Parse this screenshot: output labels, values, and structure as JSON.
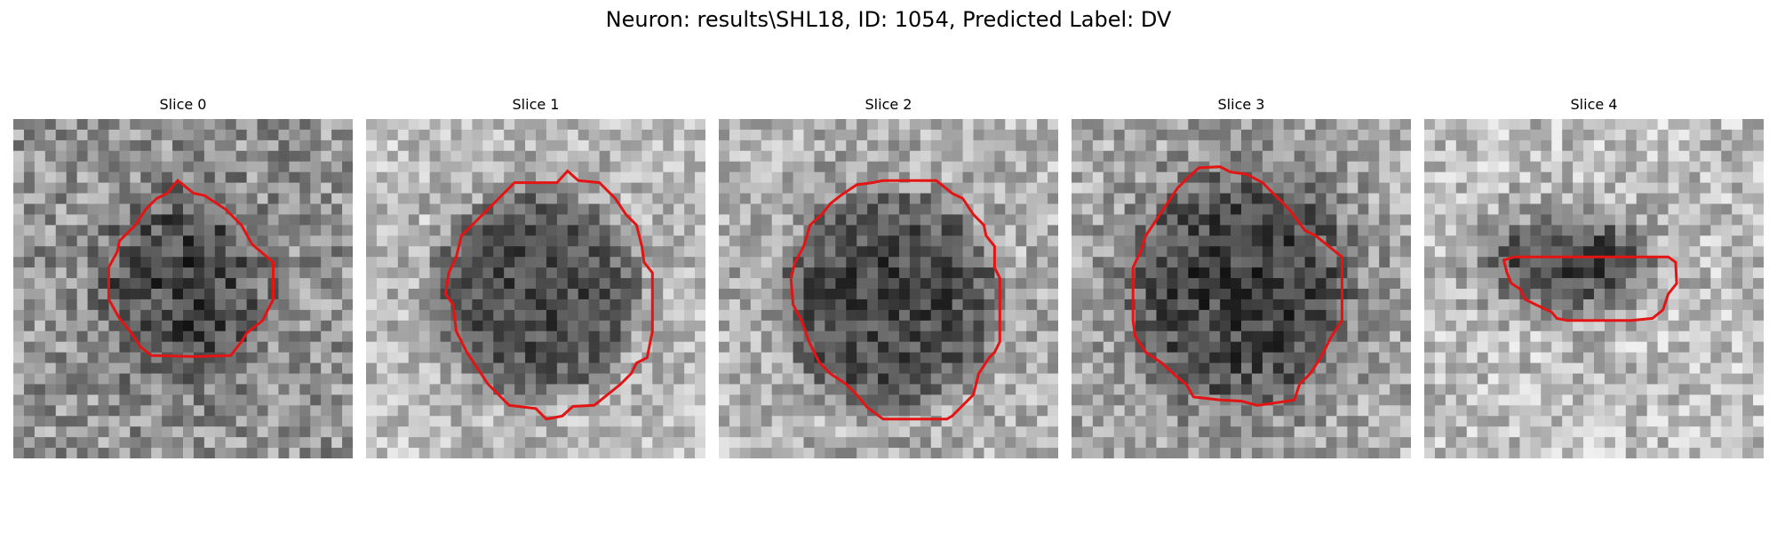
{
  "suptitle": "Neuron: results\\SHL18, ID: 1054, Predicted Label: DV",
  "colors": {
    "contour": "#e31414",
    "background": "#ffffff"
  },
  "panels": [
    {
      "title": "Slice 0"
    },
    {
      "title": "Slice 1"
    },
    {
      "title": "Slice 2"
    },
    {
      "title": "Slice 3"
    },
    {
      "title": "Slice 4"
    }
  ]
}
